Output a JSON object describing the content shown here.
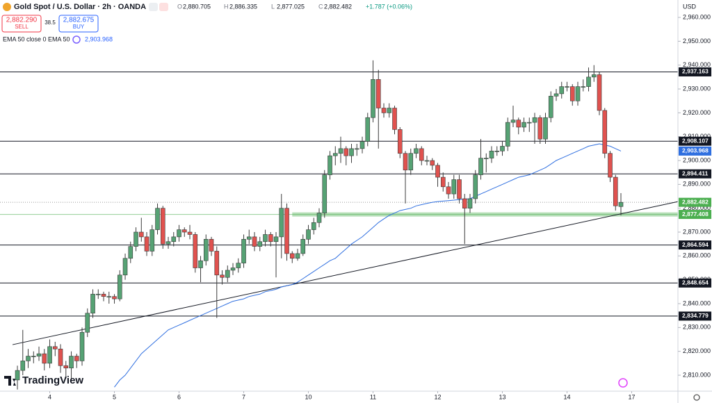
{
  "header": {
    "symbol": "Gold Spot / U.S. Dollar · 2h · OANDA",
    "ohlc": [
      {
        "label": "O",
        "value": "2,880.705"
      },
      {
        "label": "H",
        "value": "2,886.335"
      },
      {
        "label": "L",
        "value": "2,877.025"
      },
      {
        "label": "C",
        "value": "2,882.482"
      }
    ],
    "change": "+1.787 (+0.06%)"
  },
  "trade": {
    "sell_price": "2,882.290",
    "sell": "SELL",
    "spread": "38.5",
    "buy_price": "2,882.675",
    "buy": "BUY"
  },
  "indicator": {
    "label": "EMA 50 close 0 EMA 50",
    "value": "2,903.968"
  },
  "brand": "TradingView",
  "currency": "USD",
  "chart_data": {
    "type": "candlestick",
    "up_color": "#56a274",
    "down_color": "#e0524f",
    "open": [
      2808,
      2812,
      2816,
      2818,
      2818,
      2819,
      2815,
      2822,
      2821,
      2814,
      2813,
      2818,
      2816,
      2828,
      2836,
      2844,
      2844,
      2843,
      2843,
      2842,
      2852,
      2859,
      2864,
      2870,
      2868,
      2862,
      2871,
      2880,
      2865,
      2866,
      2868,
      2871,
      2870,
      2869,
      2855,
      2858,
      2867,
      2862,
      2852,
      2851,
      2854,
      2855,
      2857,
      2867,
      2868,
      2864,
      2866,
      2869,
      2866,
      2868,
      2880,
      2861,
      2859,
      2861,
      2867,
      2871,
      2874,
      2878,
      2894,
      2902,
      2903,
      2905,
      2902,
      2905,
      2905,
      2908,
      2918,
      2934,
      2922,
      2920,
      2922,
      2913,
      2903,
      2896,
      2903,
      2905,
      2900,
      2900,
      2898,
      2893,
      2889,
      2886,
      2892,
      2884,
      2880,
      2884,
      2894,
      2901,
      2901,
      2904,
      2904,
      2906,
      2916,
      2917,
      2914,
      2916,
      2916,
      2918,
      2909,
      2918,
      2927,
      2928,
      2931,
      2931,
      2925,
      2931,
      2931,
      2935,
      2936,
      2921,
      2903,
      2893,
      2880.705
    ],
    "high": [
      2814,
      2829,
      2821,
      2820,
      2822,
      2821,
      2825,
      2824,
      2823,
      2816,
      2820,
      2819,
      2830,
      2838,
      2846,
      2846,
      2845,
      2845,
      2844,
      2854,
      2861,
      2866,
      2872,
      2876,
      2870,
      2873,
      2882,
      2881,
      2868,
      2870,
      2873,
      2872,
      2873,
      2870,
      2860,
      2869,
      2868,
      2864,
      2854,
      2856,
      2857,
      2859,
      2869,
      2871,
      2870,
      2868,
      2871,
      2870,
      2870,
      2886,
      2882,
      2862,
      2863,
      2869,
      2873,
      2876,
      2880,
      2896,
      2904,
      2906,
      2910,
      2906,
      2907,
      2907,
      2910,
      2920,
      2942,
      2938,
      2924,
      2924,
      2923,
      2914,
      2904,
      2905,
      2907,
      2906,
      2902,
      2901,
      2899,
      2895,
      2891,
      2894,
      2894,
      2886,
      2886,
      2896,
      2909,
      2903,
      2906,
      2906,
      2908,
      2918,
      2923,
      2918,
      2918,
      2918,
      2920,
      2919,
      2920,
      2929,
      2930,
      2933,
      2933,
      2932,
      2933,
      2934,
      2939,
      2940,
      2937,
      2922,
      2904,
      2894,
      2886.335
    ],
    "low": [
      2804,
      2810,
      2813,
      2815,
      2816,
      2812,
      2813,
      2818,
      2811,
      2809,
      2808,
      2813,
      2814,
      2826,
      2834,
      2842,
      2841,
      2840,
      2840,
      2841,
      2850,
      2857,
      2862,
      2866,
      2860,
      2860,
      2869,
      2863,
      2863,
      2864,
      2866,
      2868,
      2867,
      2853,
      2849,
      2856,
      2860,
      2834,
      2848,
      2849,
      2852,
      2853,
      2855,
      2865,
      2862,
      2862,
      2864,
      2864,
      2851,
      2859,
      2858,
      2857,
      2858,
      2860,
      2865,
      2869,
      2872,
      2876,
      2892,
      2898,
      2899,
      2898,
      2899,
      2902,
      2903,
      2906,
      2916,
      2905,
      2918,
      2918,
      2911,
      2901,
      2882,
      2894,
      2901,
      2898,
      2898,
      2896,
      2889,
      2887,
      2884,
      2884,
      2882,
      2865,
      2878,
      2882,
      2892,
      2895,
      2899,
      2902,
      2902,
      2904,
      2914,
      2911,
      2912,
      2912,
      2907,
      2907,
      2907,
      2916,
      2925,
      2926,
      2929,
      2923,
      2923,
      2929,
      2929,
      2933,
      2919,
      2901,
      2891,
      2879,
      2877.025
    ],
    "close": [
      2812,
      2816,
      2818,
      2818,
      2819,
      2815,
      2822,
      2821,
      2814,
      2813,
      2818,
      2816,
      2828,
      2836,
      2844,
      2844,
      2843,
      2843,
      2842,
      2852,
      2859,
      2864,
      2870,
      2868,
      2862,
      2871,
      2880,
      2865,
      2866,
      2868,
      2871,
      2870,
      2869,
      2855,
      2858,
      2867,
      2862,
      2852,
      2851,
      2854,
      2855,
      2857,
      2867,
      2868,
      2864,
      2866,
      2869,
      2866,
      2868,
      2880,
      2861,
      2859,
      2861,
      2867,
      2871,
      2874,
      2878,
      2894,
      2902,
      2903,
      2905,
      2902,
      2905,
      2905,
      2908,
      2918,
      2934,
      2922,
      2920,
      2922,
      2913,
      2903,
      2896,
      2903,
      2905,
      2900,
      2900,
      2898,
      2893,
      2889,
      2886,
      2892,
      2884,
      2880,
      2884,
      2894,
      2901,
      2901,
      2904,
      2904,
      2906,
      2916,
      2917,
      2914,
      2916,
      2916,
      2918,
      2909,
      2918,
      2927,
      2928,
      2931,
      2931,
      2925,
      2931,
      2931,
      2935,
      2936,
      2921,
      2903,
      2893,
      2881,
      2882.482
    ],
    "ema": {
      "color": "#2f6fe0",
      "values": [
        null,
        null,
        null,
        null,
        null,
        null,
        null,
        null,
        null,
        null,
        null,
        null,
        null,
        null,
        null,
        null,
        null,
        null,
        2805,
        2808,
        2810,
        2813,
        2816,
        2819,
        2821,
        2823,
        2825,
        2827,
        2829,
        2830,
        2831,
        2832,
        2833,
        2834,
        2835,
        2836,
        2837,
        2838,
        2839,
        2840,
        2841,
        2841.5,
        2842,
        2843,
        2843.5,
        2844,
        2845,
        2845.5,
        2846,
        2847,
        2847.5,
        2848,
        2849,
        2850.5,
        2852,
        2853.5,
        2855,
        2856.5,
        2858,
        2859,
        2861,
        2863,
        2865,
        2866.5,
        2868,
        2870,
        2872,
        2874,
        2875.5,
        2877,
        2878,
        2879,
        2879.5,
        2880,
        2881,
        2881.5,
        2882,
        2882.5,
        2882.8,
        2883,
        2883.2,
        2883.4,
        2883.6,
        2883.8,
        2884,
        2885,
        2886,
        2887,
        2888,
        2889,
        2890,
        2891,
        2892,
        2893,
        2893.5,
        2894,
        2895,
        2896,
        2897,
        2898.5,
        2900,
        2901,
        2902,
        2903,
        2904,
        2905,
        2906,
        2906.5,
        2907,
        2906.5,
        2906,
        2905,
        2903.968
      ],
      "price_label": {
        "value": 2903.968,
        "label": "2,903.968"
      }
    },
    "last_price": {
      "value": 2882.482,
      "label": "2,882.482",
      "color": "#4caf50"
    },
    "levels": [
      {
        "value": 2937.163,
        "label": "2,937.163"
      },
      {
        "value": 2908.107,
        "label": "2,908.107"
      },
      {
        "value": 2894.411,
        "label": "2,894.411"
      },
      {
        "value": 2864.594,
        "label": "2,864.594"
      },
      {
        "value": 2848.654,
        "label": "2,848.654"
      },
      {
        "value": 2834.779,
        "label": "2,834.779"
      }
    ],
    "zone": {
      "value": 2877.408,
      "label": "2,877.408",
      "x_start": 51,
      "color": "#4caf50"
    },
    "trendline": {
      "x": [
        -0.9,
        122.6
      ],
      "values": [
        2822.8,
        2882.8
      ]
    },
    "xlim": [
      -3.23,
      122.58
    ],
    "xticks": [
      {
        "value": 6,
        "label": "4"
      },
      {
        "value": 18,
        "label": "5"
      },
      {
        "value": 30,
        "label": "6"
      },
      {
        "value": 42,
        "label": "7"
      },
      {
        "value": 54,
        "label": "10"
      },
      {
        "value": 66,
        "label": "11"
      },
      {
        "value": 78,
        "label": "12"
      },
      {
        "value": 90,
        "label": "13"
      },
      {
        "value": 102,
        "label": "14"
      },
      {
        "value": 114,
        "label": "17"
      }
    ],
    "ylim": [
      2803.3,
      2967.3
    ],
    "yticks": [
      {
        "value": 2810,
        "label": "2,810.000"
      },
      {
        "value": 2820,
        "label": "2,820.000"
      },
      {
        "value": 2830,
        "label": "2,830.000"
      },
      {
        "value": 2840,
        "label": "2,840.000"
      },
      {
        "value": 2850,
        "label": "2,850.000"
      },
      {
        "value": 2860,
        "label": "2,860.000"
      },
      {
        "value": 2870,
        "label": "2,870.000"
      },
      {
        "value": 2880,
        "label": "2,880.000"
      },
      {
        "value": 2890,
        "label": "2,890.000"
      },
      {
        "value": 2900,
        "label": "2,900.000"
      },
      {
        "value": 2910,
        "label": "2,910.000"
      },
      {
        "value": 2920,
        "label": "2,920.000"
      },
      {
        "value": 2930,
        "label": "2,930.000"
      },
      {
        "value": 2940,
        "label": "2,940.000"
      },
      {
        "value": 2950,
        "label": "2,950.000"
      },
      {
        "value": 2960,
        "label": "2,960.000"
      }
    ]
  }
}
